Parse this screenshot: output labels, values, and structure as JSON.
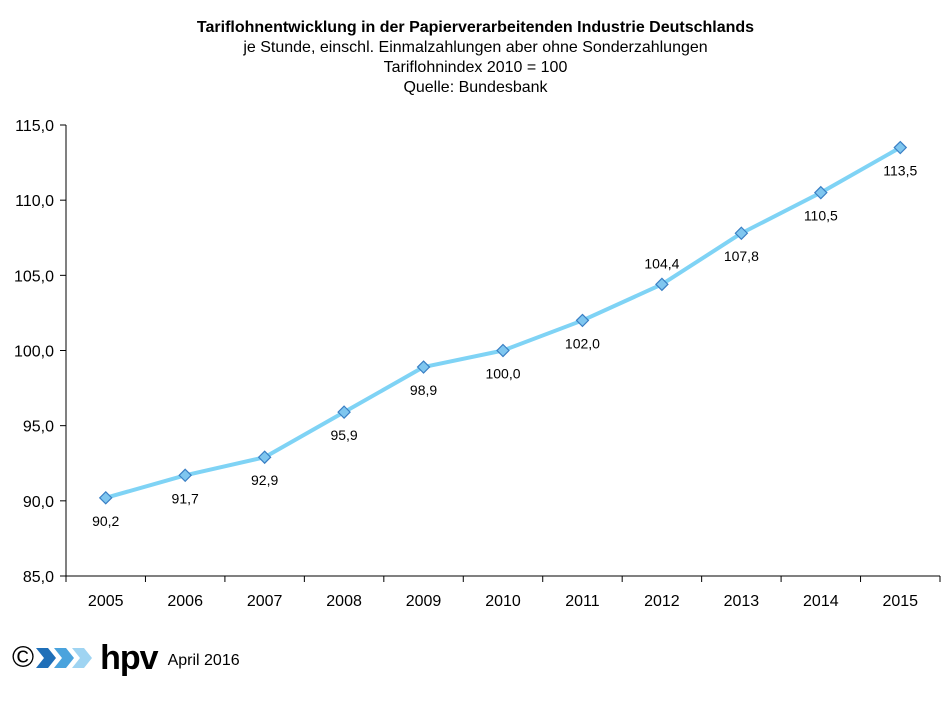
{
  "chart_data": {
    "type": "line",
    "title": "Tariflohnentwicklung in der Papierverarbeitenden Industrie Deutschlands",
    "subtitles": [
      "je Stunde, einschl. Einmalzahlungen  aber ohne Sonderzahlungen",
      "Tariflohnindex 2010 = 100",
      "Quelle: Bundesbank"
    ],
    "x": [
      "2005",
      "2006",
      "2007",
      "2008",
      "2009",
      "2010",
      "2011",
      "2012",
      "2013",
      "2014",
      "2015"
    ],
    "values": [
      90.2,
      91.7,
      92.9,
      95.9,
      98.9,
      100.0,
      102.0,
      104.4,
      107.8,
      110.5,
      113.5
    ],
    "data_labels": [
      "90,2",
      "91,7",
      "92,9",
      "95,9",
      "98,9",
      "100,0",
      "102,0",
      "104,4",
      "107,8",
      "110,5",
      "113,5"
    ],
    "label_position": [
      "below",
      "below",
      "below",
      "below",
      "below",
      "below",
      "below",
      "above",
      "below",
      "below",
      "below"
    ],
    "yticks": [
      "85,0",
      "90,0",
      "95,0",
      "100,0",
      "105,0",
      "110,0",
      "115,0"
    ],
    "ylim": [
      85,
      115
    ],
    "grid": false,
    "legend": "none",
    "line_color": "#7fd3f5",
    "marker_color": "#7fc6ef",
    "marker_edge": "#3a7fc4"
  },
  "footer": {
    "copyright": "©",
    "brand": "hpv",
    "date": "April 2016"
  },
  "colors": {
    "logo_arrow_dark": "#1f6fb8",
    "logo_arrow_mid": "#4aa3dd",
    "logo_arrow_light": "#9fd4f2"
  }
}
